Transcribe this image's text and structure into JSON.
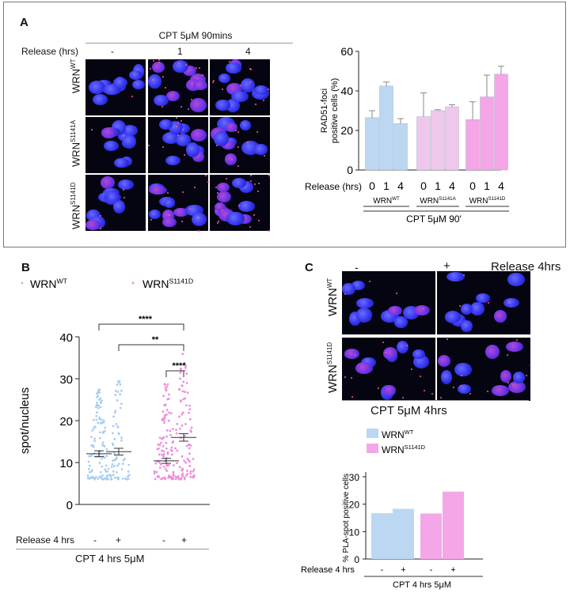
{
  "panelA": {
    "letter": "A",
    "condition_header": "CPT 5μM 90mins",
    "release_label": "Release (hrs)",
    "columns": [
      "-",
      "1",
      "4"
    ],
    "rows": [
      {
        "base": "WRN",
        "sup": "WT"
      },
      {
        "base": "WRN",
        "sup": "S1141A"
      },
      {
        "base": "WRN",
        "sup": "S1141D"
      }
    ]
  },
  "panelB": {
    "letter": "B",
    "significance": [
      "****",
      "**",
      "****"
    ],
    "release_label": "Release 4 hrs",
    "treatment_label": "CPT 4 hrs 5μM"
  },
  "panelC": {
    "letter": "C",
    "columns": [
      "-",
      "+"
    ],
    "release_label": "Release 4hrs",
    "rows": [
      {
        "base": "WRN",
        "sup": "WT"
      },
      {
        "base": "WRN",
        "sup": "S1141D"
      }
    ],
    "treatment_label": "CPT 5μM 4hrs"
  },
  "colors": {
    "wt": "#bcd7f1",
    "s1141a": "#f0c7ec",
    "s1141d": "#f5a6e6",
    "wt_dot": "#a9cdf1",
    "d_dot": "#ee8fdc"
  },
  "chart_data": [
    {
      "id": "A-bar",
      "type": "bar",
      "ylabel": "RAD51-foci positive cells (%)",
      "ylim": [
        0,
        60
      ],
      "yticks": [
        0,
        20,
        40,
        60
      ],
      "xlabel": "Release (hrs)",
      "categories": [
        "0",
        "1",
        "4",
        "0",
        "1",
        "4",
        "0",
        "1",
        "4"
      ],
      "groups": [
        {
          "base": "WRN",
          "sup": "WT"
        },
        {
          "base": "WRN",
          "sup": "S1141A"
        },
        {
          "base": "WRN",
          "sup": "S1141D"
        }
      ],
      "footer": "CPT 5μM 90'",
      "values": [
        26.5,
        42.5,
        23.5,
        27,
        30,
        32,
        25.5,
        37,
        48.5
      ],
      "errors": [
        3.5,
        2,
        2.5,
        12,
        0.5,
        1,
        9,
        11,
        4
      ]
    },
    {
      "id": "B-scatter",
      "type": "scatter",
      "ylabel": "spot/nucleus",
      "ylim": [
        0,
        40
      ],
      "yticks": [
        0,
        10,
        20,
        30,
        40
      ],
      "legend": [
        {
          "base": "WRN",
          "sup": "WT"
        },
        {
          "base": "WRN",
          "sup": "S1141D"
        }
      ],
      "categories": [
        "-",
        "+",
        "-",
        "+"
      ],
      "means": [
        12.1,
        12.6,
        10.4,
        16.0
      ],
      "sems": [
        0.7,
        0.8,
        0.6,
        0.9
      ],
      "max": [
        28,
        30,
        29,
        36
      ],
      "min": [
        6,
        6,
        6,
        6
      ]
    },
    {
      "id": "C-bar",
      "type": "bar",
      "ylabel": "% PLA-spot positive cells",
      "ylim": [
        0,
        30
      ],
      "yticks": [
        0,
        10,
        20,
        30
      ],
      "legend": [
        {
          "base": "WRN",
          "sup": "WT"
        },
        {
          "base": "WRN",
          "sup": "S1141D"
        }
      ],
      "categories": [
        "-",
        "+",
        "-",
        "+"
      ],
      "values": [
        16.7,
        18.3,
        16.6,
        24.6
      ],
      "release_label": "Release 4 hrs",
      "footer": "CPT 4 hrs 5μM"
    }
  ]
}
